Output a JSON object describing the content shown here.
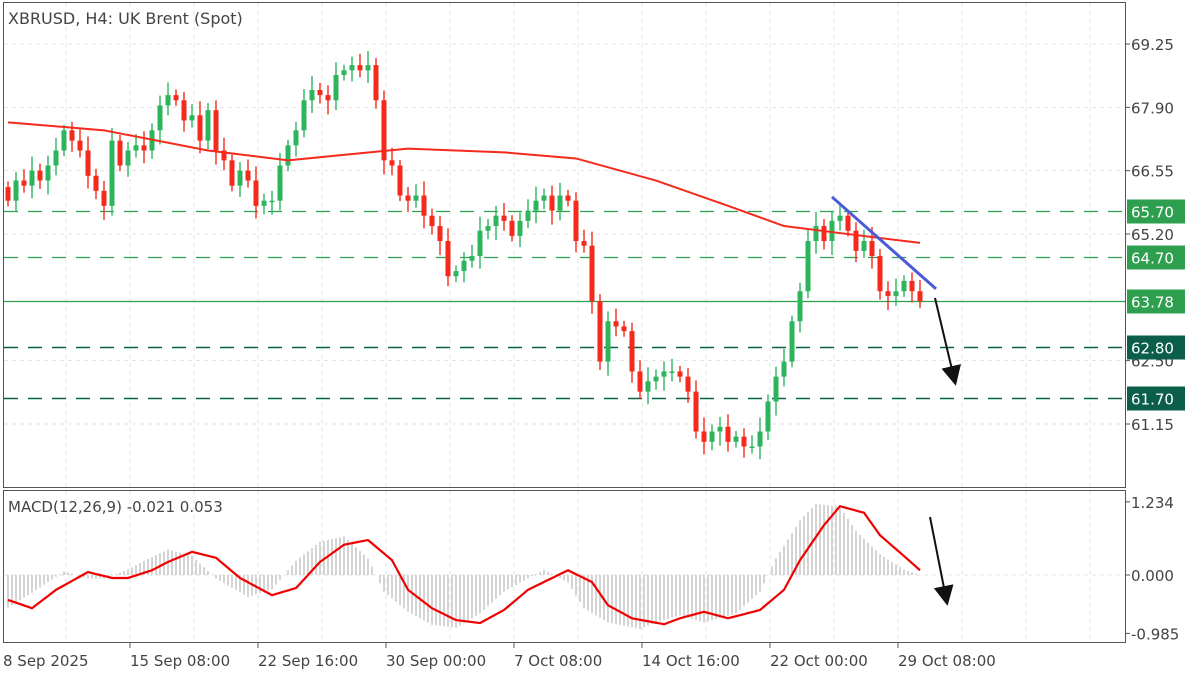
{
  "header": {
    "title": "XBRUSD, H4:  UK Brent (Spot)"
  },
  "macd_header": {
    "title": "MACD(12,26,9) -0.021 0.053"
  },
  "colors": {
    "bull": "#2db55d",
    "bear": "#f5291c",
    "ma": "#f5291c",
    "trend": "#4a5bd6",
    "level_light": "#2e9e4f",
    "level_dark": "#0b5e4a",
    "hist": "#bdbdbd",
    "signal": "#f00000",
    "grid": "#e3e3e3"
  },
  "chart_data": [
    {
      "type": "candlestick",
      "symbol": "XBRUSD",
      "timeframe": "H4",
      "y_ticks": [
        "69.25",
        "67.90",
        "66.55",
        "65.20",
        "62.50",
        "61.15"
      ],
      "x_ticks": [
        "8 Sep 2025",
        "15 Sep 08:00",
        "22 Sep 16:00",
        "30 Sep 00:00",
        "7 Oct 08:00",
        "14 Oct 16:00",
        "22 Oct 00:00",
        "29 Oct 08:00"
      ],
      "ylim": [
        59.76,
        70.19
      ],
      "grid": true,
      "first_open": 66.2,
      "close": [
        65.91,
        66.34,
        66.23,
        66.55,
        66.34,
        66.66,
        66.98,
        67.41,
        67.19,
        66.98,
        66.44,
        66.12,
        65.8,
        67.19,
        66.66,
        66.98,
        67.09,
        66.98,
        67.41,
        67.94,
        68.16,
        68.05,
        67.62,
        67.73,
        67.19,
        67.84,
        66.98,
        66.77,
        66.23,
        66.55,
        66.34,
        65.8,
        65.91,
        65.91,
        66.66,
        67.09,
        67.41,
        68.05,
        68.27,
        68.16,
        68.05,
        68.59,
        68.69,
        68.8,
        68.69,
        68.8,
        68.05,
        66.77,
        66.66,
        66.02,
        65.91,
        66.02,
        65.59,
        65.37,
        65.05,
        64.3,
        64.41,
        64.63,
        64.73,
        65.27,
        65.37,
        65.59,
        65.48,
        65.16,
        65.48,
        65.7,
        65.91,
        66.02,
        65.7,
        66.02,
        65.91,
        65.05,
        64.95,
        63.77,
        62.48,
        63.34,
        63.23,
        63.13,
        62.27,
        61.84,
        62.06,
        62.16,
        62.27,
        62.27,
        62.16,
        61.84,
        60.99,
        60.77,
        60.99,
        61.09,
        60.77,
        60.88,
        60.67,
        60.67,
        60.99,
        61.63,
        62.16,
        62.48,
        63.34,
        63.98,
        65.05,
        65.37,
        65.05,
        65.48,
        65.59,
        65.27,
        64.84,
        65.05,
        64.73,
        63.98,
        63.88,
        63.98,
        64.2,
        63.98,
        63.77
      ],
      "moving_average": [
        [
          0,
          67.58
        ],
        [
          12,
          67.41
        ],
        [
          25,
          66.98
        ],
        [
          35,
          66.77
        ],
        [
          41,
          66.87
        ],
        [
          50,
          67.02
        ],
        [
          62,
          66.94
        ],
        [
          71,
          66.81
        ],
        [
          81,
          66.34
        ],
        [
          90,
          65.8
        ],
        [
          97,
          65.37
        ],
        [
          104,
          65.22
        ],
        [
          114,
          65.01
        ]
      ],
      "trendline": {
        "from": [
          103,
          65.99
        ],
        "to": [
          116,
          64.03
        ]
      },
      "levels": [
        {
          "value": "65.70",
          "style": "dashed",
          "tone": "light"
        },
        {
          "value": "64.70",
          "style": "dashed",
          "tone": "light"
        },
        {
          "value": "63.78",
          "style": "solid",
          "tone": "light"
        },
        {
          "value": "62.80",
          "style": "dashed",
          "tone": "dark"
        },
        {
          "value": "61.70",
          "style": "dashed",
          "tone": "dark"
        }
      ],
      "annotation": "down-arrow"
    },
    {
      "type": "bar+line",
      "indicator": "MACD(12,26,9)",
      "y_ticks": [
        "1.234",
        "0.000",
        "-0.985"
      ],
      "ylim": [
        -1.14,
        1.48
      ],
      "signal": [
        [
          0,
          -0.42
        ],
        [
          3,
          -0.56
        ],
        [
          6,
          -0.25
        ],
        [
          10,
          0.05
        ],
        [
          13,
          -0.05
        ],
        [
          15,
          -0.05
        ],
        [
          18,
          0.08
        ],
        [
          20,
          0.22
        ],
        [
          23,
          0.39
        ],
        [
          26,
          0.29
        ],
        [
          29,
          -0.05
        ],
        [
          33,
          -0.34
        ],
        [
          36,
          -0.22
        ],
        [
          39,
          0.22
        ],
        [
          42,
          0.51
        ],
        [
          45,
          0.59
        ],
        [
          48,
          0.25
        ],
        [
          50,
          -0.25
        ],
        [
          53,
          -0.56
        ],
        [
          56,
          -0.76
        ],
        [
          59,
          -0.81
        ],
        [
          62,
          -0.59
        ],
        [
          65,
          -0.25
        ],
        [
          70,
          0.08
        ],
        [
          73,
          -0.12
        ],
        [
          75,
          -0.51
        ],
        [
          78,
          -0.73
        ],
        [
          82,
          -0.83
        ],
        [
          84,
          -0.73
        ],
        [
          87,
          -0.62
        ],
        [
          90,
          -0.73
        ],
        [
          94,
          -0.59
        ],
        [
          97,
          -0.25
        ],
        [
          99,
          0.25
        ],
        [
          102,
          0.84
        ],
        [
          104,
          1.16
        ],
        [
          107,
          1.05
        ],
        [
          109,
          0.67
        ],
        [
          112,
          0.32
        ],
        [
          114,
          0.08
        ]
      ],
      "histogram": [
        [
          0,
          -0.55
        ],
        [
          3,
          -0.3
        ],
        [
          7,
          0.06
        ],
        [
          10,
          -0.06
        ],
        [
          12,
          -0.06
        ],
        [
          15,
          0.09
        ],
        [
          17,
          0.24
        ],
        [
          20,
          0.43
        ],
        [
          23,
          0.32
        ],
        [
          26,
          -0.06
        ],
        [
          30,
          -0.37
        ],
        [
          33,
          -0.24
        ],
        [
          36,
          0.24
        ],
        [
          39,
          0.56
        ],
        [
          42,
          0.65
        ],
        [
          45,
          0.28
        ],
        [
          47,
          -0.28
        ],
        [
          50,
          -0.62
        ],
        [
          53,
          -0.84
        ],
        [
          56,
          -0.89
        ],
        [
          59,
          -0.65
        ],
        [
          62,
          -0.28
        ],
        [
          67,
          0.09
        ],
        [
          70,
          -0.13
        ],
        [
          72,
          -0.56
        ],
        [
          75,
          -0.8
        ],
        [
          79,
          -0.91
        ],
        [
          81,
          -0.8
        ],
        [
          84,
          -0.68
        ],
        [
          87,
          -0.8
        ],
        [
          91,
          -0.65
        ],
        [
          94,
          -0.28
        ],
        [
          96,
          0.28
        ],
        [
          99,
          0.92
        ],
        [
          101,
          1.2
        ],
        [
          104,
          1.15
        ],
        [
          106,
          0.74
        ],
        [
          109,
          0.35
        ],
        [
          112,
          0.09
        ],
        [
          114,
          0.0
        ]
      ],
      "annotation": "down-arrow"
    }
  ]
}
